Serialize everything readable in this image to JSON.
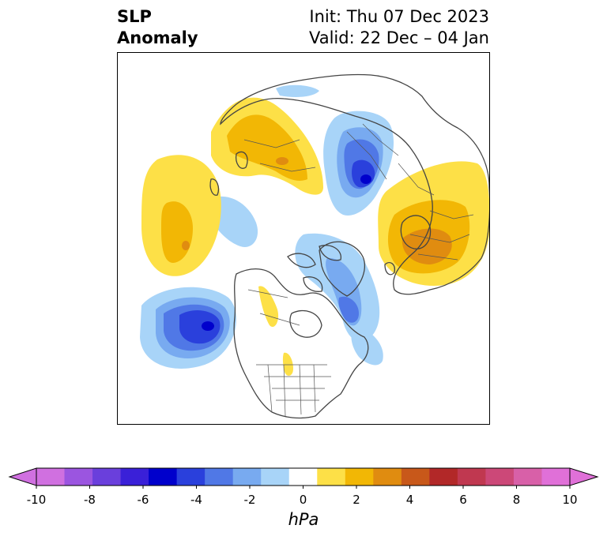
{
  "title": {
    "left_line1": "SLP",
    "left_line2": "Anomaly",
    "right_line1": "Init: Thu 07 Dec 2023",
    "right_line2": "Valid: 22 Dec – 04 Jan"
  },
  "colorbar": {
    "units": "hPa",
    "ticks": [
      "-10",
      "-8",
      "-6",
      "-4",
      "-2",
      "0",
      "2",
      "4",
      "6",
      "8",
      "10"
    ],
    "levels": [
      -10,
      -9,
      -8,
      -7,
      -6,
      -5,
      -4,
      -3,
      -2,
      -1,
      1,
      2,
      3,
      4,
      5,
      6,
      7,
      8,
      9,
      10
    ],
    "colors": [
      "#d070e0",
      "#9b55e0",
      "#6a3fdc",
      "#3a20d8",
      "#0000cc",
      "#2a40dc",
      "#5078e6",
      "#78aaf0",
      "#a8d4f8",
      "#ffffff",
      "#fde047",
      "#f2b705",
      "#e08c10",
      "#c8581a",
      "#b22828",
      "#c03850",
      "#cc4878",
      "#d860a8",
      "#e070d8"
    ],
    "extend": "both"
  },
  "map": {
    "projection": "north polar stereographic",
    "features": [
      "coastlines",
      "country borders",
      "US state borders"
    ],
    "anomaly_centers": [
      {
        "region": "North Pacific / Gulf of Alaska",
        "sign": "negative",
        "peak_hpa": -6
      },
      {
        "region": "Western Siberia / Ural",
        "sign": "negative",
        "peak_hpa": -5
      },
      {
        "region": "Canadian Arctic Archipelago",
        "sign": "negative",
        "peak_hpa": -3
      },
      {
        "region": "Eastern Canada / Labrador",
        "sign": "negative",
        "peak_hpa": -3
      },
      {
        "region": "Northeast Asia / Okhotsk",
        "sign": "positive",
        "peak_hpa": 3
      },
      {
        "region": "Eastern Siberia / Yakutia",
        "sign": "positive",
        "peak_hpa": 3
      },
      {
        "region": "Eastern Europe / Scandinavia",
        "sign": "positive",
        "peak_hpa": 4
      },
      {
        "region": "Western Canada",
        "sign": "positive",
        "peak_hpa": 1
      },
      {
        "region": "Central United States",
        "sign": "positive",
        "peak_hpa": 1
      }
    ]
  }
}
